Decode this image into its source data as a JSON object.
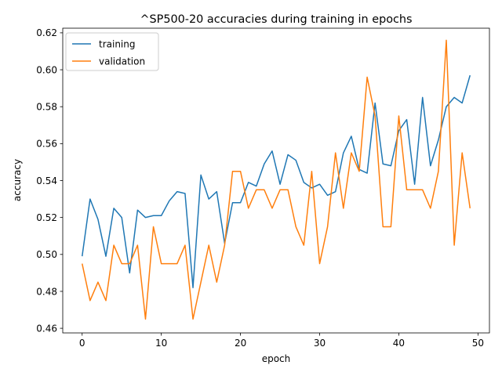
{
  "chart_data": {
    "type": "line",
    "title": "^SP500-20 accuracies during training in epochs",
    "xlabel": "epoch",
    "ylabel": "accuracy",
    "xlim": [
      -2.45,
      51.45
    ],
    "ylim": [
      0.4575,
      0.6225
    ],
    "xticks": [
      0,
      10,
      20,
      30,
      40,
      50
    ],
    "yticks": [
      0.46,
      0.48,
      0.5,
      0.52,
      0.54,
      0.56,
      0.58,
      0.6,
      0.62
    ],
    "ytick_labels": [
      "0.46",
      "0.48",
      "0.50",
      "0.52",
      "0.54",
      "0.56",
      "0.58",
      "0.60",
      "0.62"
    ],
    "legend_position": "top-left",
    "grid": false,
    "series": [
      {
        "name": "training",
        "color": "#1f77b4",
        "x": [
          0,
          1,
          2,
          3,
          4,
          5,
          6,
          7,
          8,
          9,
          10,
          11,
          12,
          13,
          14,
          15,
          16,
          17,
          18,
          19,
          20,
          21,
          22,
          23,
          24,
          25,
          26,
          27,
          28,
          29,
          30,
          31,
          32,
          33,
          34,
          35,
          36,
          37,
          38,
          39,
          40,
          41,
          42,
          43,
          44,
          45,
          46,
          47,
          48,
          49
        ],
        "values": [
          0.499,
          0.53,
          0.519,
          0.499,
          0.525,
          0.52,
          0.49,
          0.524,
          0.52,
          0.521,
          0.521,
          0.529,
          0.534,
          0.533,
          0.482,
          0.543,
          0.53,
          0.534,
          0.506,
          0.528,
          0.528,
          0.539,
          0.537,
          0.549,
          0.556,
          0.538,
          0.554,
          0.551,
          0.539,
          0.536,
          0.538,
          0.532,
          0.534,
          0.555,
          0.564,
          0.546,
          0.544,
          0.582,
          0.549,
          0.548,
          0.567,
          0.573,
          0.538,
          0.585,
          0.548,
          0.562,
          0.58,
          0.585,
          0.582,
          0.597
        ]
      },
      {
        "name": "validation",
        "color": "#ff7f0e",
        "x": [
          0,
          1,
          2,
          3,
          4,
          5,
          6,
          7,
          8,
          9,
          10,
          11,
          12,
          13,
          14,
          15,
          16,
          17,
          18,
          19,
          20,
          21,
          22,
          23,
          24,
          25,
          26,
          27,
          28,
          29,
          30,
          31,
          32,
          33,
          34,
          35,
          36,
          37,
          38,
          39,
          40,
          41,
          42,
          43,
          44,
          45,
          46,
          47,
          48,
          49
        ],
        "values": [
          0.495,
          0.475,
          0.485,
          0.475,
          0.505,
          0.495,
          0.495,
          0.505,
          0.465,
          0.515,
          0.495,
          0.495,
          0.495,
          0.505,
          0.465,
          0.485,
          0.505,
          0.485,
          0.505,
          0.545,
          0.545,
          0.525,
          0.535,
          0.535,
          0.525,
          0.535,
          0.535,
          0.515,
          0.505,
          0.545,
          0.495,
          0.515,
          0.555,
          0.525,
          0.555,
          0.545,
          0.596,
          0.575,
          0.515,
          0.515,
          0.575,
          0.535,
          0.535,
          0.535,
          0.525,
          0.545,
          0.616,
          0.505,
          0.555,
          0.525
        ]
      }
    ]
  }
}
